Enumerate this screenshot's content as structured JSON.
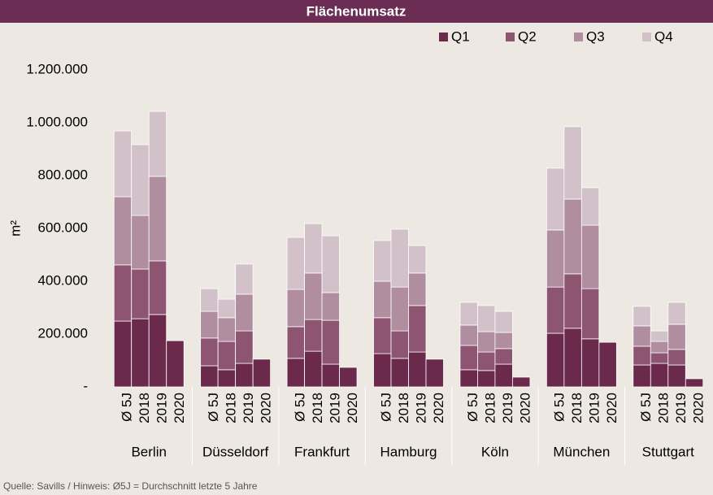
{
  "chart_data": {
    "type": "stacked_bar",
    "title": "Flächenumsatz",
    "y_label": "m²",
    "groups": [
      "Berlin",
      "Düsseldorf",
      "Frankfurt",
      "Hamburg",
      "Köln",
      "München",
      "Stuttgart"
    ],
    "categories": [
      "Ø 5J",
      "2018",
      "2019",
      "2020",
      "Ø 5J",
      "2018",
      "2019",
      "2020",
      "Ø 5J",
      "2018",
      "2019",
      "2020",
      "Ø 5J",
      "2018",
      "2019",
      "2020",
      "Ø 5J",
      "2018",
      "2019",
      "2020",
      "Ø 5J",
      "2018",
      "2019",
      "2020",
      "Ø 5J",
      "2018",
      "2019",
      "2020"
    ],
    "series": [
      {
        "name": "Q1",
        "color": "#6b2a4c",
        "values": [
          249000,
          258000,
          274000,
          175000,
          80000,
          65000,
          89000,
          105000,
          108000,
          135000,
          86000,
          74000,
          126000,
          108000,
          132000,
          105000,
          65000,
          62000,
          86000,
          37000,
          203000,
          222000,
          182000,
          169000,
          83000,
          89000,
          83000,
          31000
        ]
      },
      {
        "name": "Q2",
        "color": "#8e5572",
        "values": [
          213000,
          188000,
          203000,
          null,
          105000,
          107000,
          123000,
          null,
          120000,
          120000,
          166000,
          null,
          136000,
          104000,
          176000,
          null,
          92000,
          70000,
          59000,
          null,
          175000,
          206000,
          190000,
          null,
          71000,
          40000,
          59000,
          null
        ]
      },
      {
        "name": "Q3",
        "color": "#b08ea0",
        "values": [
          258000,
          203000,
          320000,
          null,
          101000,
          90000,
          139000,
          null,
          141000,
          176000,
          105000,
          null,
          138000,
          166000,
          123000,
          null,
          77000,
          77000,
          61000,
          null,
          216000,
          283000,
          240000,
          null,
          77000,
          43000,
          95000,
          null
        ]
      },
      {
        "name": "Q4",
        "color": "#d2c1c9",
        "values": [
          249000,
          268000,
          246000,
          null,
          86000,
          70000,
          114000,
          null,
          197000,
          187000,
          215000,
          null,
          154000,
          219000,
          104000,
          null,
          86000,
          99000,
          80000,
          null,
          234000,
          274000,
          142000,
          null,
          74000,
          40000,
          83000,
          null
        ]
      }
    ],
    "ylim": [
      0,
      1200000
    ],
    "yticks": [
      {
        "value": 0,
        "label": "-"
      },
      {
        "value": 200000,
        "label": "200.000"
      },
      {
        "value": 400000,
        "label": "400.000"
      },
      {
        "value": 600000,
        "label": "600.000"
      },
      {
        "value": 800000,
        "label": "800.000"
      },
      {
        "value": 1000000,
        "label": "1.000.000"
      },
      {
        "value": 1200000,
        "label": "1.200.000"
      }
    ],
    "legend_position": "top-right",
    "source": "Quelle: Savills / Hinweis: Ø5J = Durchschnitt letzte 5 Jahre"
  }
}
